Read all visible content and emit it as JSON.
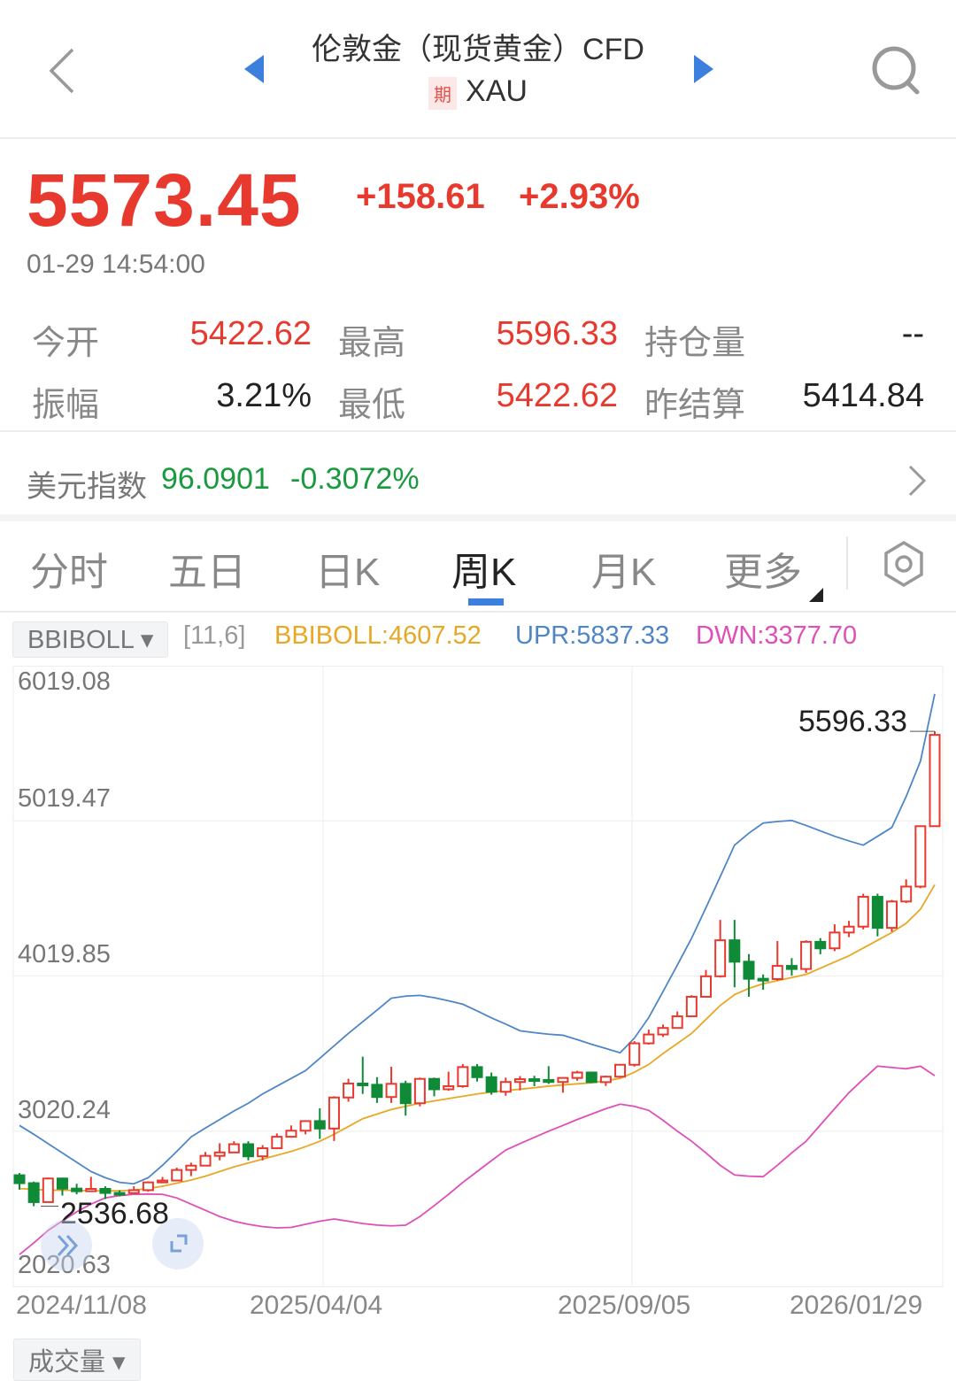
{
  "header": {
    "title": "伦敦金（现货黄金）CFD",
    "badge": "期",
    "symbol": "XAU",
    "icons": [
      "chevron-left-icon",
      "prev-arrow-icon",
      "next-arrow-icon",
      "search-icon"
    ]
  },
  "quote": {
    "price": "5573.45",
    "change": "+158.61",
    "change_pct": "+2.93%",
    "time": "01-29 14:54:00",
    "color_up": "#e8392e",
    "color_down": "#0f8a37"
  },
  "stats": [
    {
      "label": "今开",
      "value": "5422.62",
      "color": "red"
    },
    {
      "label": "最高",
      "value": "5596.33",
      "color": "red"
    },
    {
      "label": "持仓量",
      "value": "--",
      "color": "black"
    },
    {
      "label": "振幅",
      "value": "3.21%",
      "color": "black"
    },
    {
      "label": "最低",
      "value": "5422.62",
      "color": "red"
    },
    {
      "label": "昨结算",
      "value": "5414.84",
      "color": "black"
    }
  ],
  "dxy": {
    "label": "美元指数",
    "value": "96.0901",
    "change": "-0.3072%",
    "color": "#1a9a3e"
  },
  "tabs": [
    {
      "label": "分时"
    },
    {
      "label": "五日"
    },
    {
      "label": "日K"
    },
    {
      "label": "周K",
      "active": true
    },
    {
      "label": "月K"
    },
    {
      "label": "更多"
    }
  ],
  "indicator": {
    "name": "BBIBOLL ▾",
    "params": "[11,6]",
    "mid": "BBIBOLL:4607.52",
    "upr": "UPR:5837.33",
    "dwn": "DWN:3377.70",
    "colors": {
      "mid": "#e7a825",
      "upr": "#4f86c6",
      "dwn": "#e04fb8"
    }
  },
  "volume_selector": "成交量 ▾",
  "chart_data": {
    "type": "candlestick",
    "period": "weekly",
    "y_ticks": [
      "6019.08",
      "5019.47",
      "4019.85",
      "3020.24",
      "2020.63"
    ],
    "ylim": [
      2020.63,
      6019.08
    ],
    "x_ticks": [
      "2024/11/08",
      "2025/04/04",
      "2025/09/05",
      "2026/01/29"
    ],
    "max_label": "5596.33",
    "min_label": "2536.68",
    "ohlc": [
      [
        2736,
        2750,
        2643,
        2685
      ],
      [
        2685,
        2695,
        2536.68,
        2563
      ],
      [
        2563,
        2721,
        2560,
        2715
      ],
      [
        2715,
        2721,
        2605,
        2650
      ],
      [
        2650,
        2681,
        2613,
        2633
      ],
      [
        2633,
        2726,
        2630,
        2648
      ],
      [
        2648,
        2665,
        2583,
        2622
      ],
      [
        2622,
        2639,
        2600,
        2621
      ],
      [
        2621,
        2665,
        2615,
        2640
      ],
      [
        2640,
        2697,
        2630,
        2690
      ],
      [
        2690,
        2725,
        2690,
        2702
      ],
      [
        2702,
        2785,
        2700,
        2770
      ],
      [
        2770,
        2817,
        2730,
        2798
      ],
      [
        2798,
        2886,
        2795,
        2861
      ],
      [
        2861,
        2942,
        2832,
        2883
      ],
      [
        2883,
        2955,
        2880,
        2936
      ],
      [
        2936,
        2955,
        2832,
        2858
      ],
      [
        2858,
        2930,
        2832,
        2910
      ],
      [
        2910,
        3005,
        2905,
        2984
      ],
      [
        2984,
        3057,
        2982,
        3023
      ],
      [
        3023,
        3087,
        3000,
        3085
      ],
      [
        3085,
        3167,
        2970,
        3037
      ],
      [
        3037,
        3245,
        2957,
        3237
      ],
      [
        3237,
        3358,
        3210,
        3327
      ],
      [
        3327,
        3500,
        3260,
        3319
      ],
      [
        3319,
        3368,
        3202,
        3240
      ],
      [
        3240,
        3435,
        3202,
        3325
      ],
      [
        3325,
        3345,
        3120,
        3200
      ],
      [
        3200,
        3365,
        3180,
        3357
      ],
      [
        3357,
        3365,
        3245,
        3290
      ],
      [
        3290,
        3403,
        3280,
        3310
      ],
      [
        3310,
        3452,
        3300,
        3433
      ],
      [
        3433,
        3452,
        3340,
        3368
      ],
      [
        3368,
        3398,
        3255,
        3274
      ],
      [
        3274,
        3365,
        3248,
        3337
      ],
      [
        3337,
        3375,
        3283,
        3355
      ],
      [
        3355,
        3377,
        3310,
        3350
      ],
      [
        3350,
        3439,
        3324,
        3337
      ],
      [
        3337,
        3363,
        3268,
        3363
      ],
      [
        3363,
        3409,
        3345,
        3398
      ],
      [
        3398,
        3404,
        3330,
        3336
      ],
      [
        3336,
        3378,
        3311,
        3371
      ],
      [
        3371,
        3453,
        3365,
        3448
      ],
      [
        3448,
        3600,
        3436,
        3586
      ],
      [
        3586,
        3674,
        3578,
        3643
      ],
      [
        3643,
        3707,
        3627,
        3685
      ],
      [
        3685,
        3791,
        3684,
        3760
      ],
      [
        3760,
        3896,
        3757,
        3886
      ],
      [
        3886,
        4059,
        3885,
        4018
      ],
      [
        4018,
        4381,
        4010,
        4250
      ],
      [
        4250,
        4381,
        3947,
        4112
      ],
      [
        4112,
        4161,
        3886,
        4002
      ],
      [
        4002,
        4030,
        3931,
        4000
      ],
      [
        4000,
        4245,
        3990,
        4085
      ],
      [
        4085,
        4135,
        4022,
        4065
      ],
      [
        4065,
        4250,
        4040,
        4240
      ],
      [
        4240,
        4264,
        4160,
        4198
      ],
      [
        4198,
        4353,
        4180,
        4300
      ],
      [
        4300,
        4375,
        4270,
        4338
      ],
      [
        4338,
        4550,
        4320,
        4530
      ],
      [
        4530,
        4550,
        4275,
        4330
      ],
      [
        4330,
        4510,
        4305,
        4500
      ],
      [
        4500,
        4643,
        4490,
        4596
      ],
      [
        4596,
        4990,
        4585,
        4985
      ],
      [
        4985,
        5596.33,
        4985,
        5573.45
      ]
    ],
    "series": [
      {
        "name": "UPR",
        "values": [
          3057,
          3000,
          2940,
          2880,
          2820,
          2760,
          2720,
          2690,
          2681,
          2720,
          2800,
          2890,
          2983,
          3040,
          3095,
          3150,
          3200,
          3260,
          3310,
          3360,
          3410,
          3490,
          3570,
          3650,
          3725,
          3800,
          3877,
          3890,
          3895,
          3880,
          3860,
          3838,
          3795,
          3750,
          3710,
          3667,
          3655,
          3645,
          3638,
          3610,
          3580,
          3553,
          3525,
          3620,
          3752,
          3920,
          4090,
          4264,
          4460,
          4660,
          4863,
          4940,
          5005,
          5015,
          5022,
          4990,
          4955,
          4920,
          4890,
          4863,
          4920,
          4977,
          5176,
          5404,
          5837.33
        ]
      },
      {
        "name": "BBIBOLL",
        "values": [
          2650,
          2645,
          2640,
          2640,
          2638,
          2636,
          2635,
          2636,
          2640,
          2650,
          2665,
          2685,
          2705,
          2730,
          2760,
          2790,
          2815,
          2840,
          2865,
          2890,
          2920,
          2955,
          3000,
          3050,
          3100,
          3130,
          3160,
          3180,
          3200,
          3215,
          3230,
          3245,
          3260,
          3272,
          3282,
          3290,
          3300,
          3310,
          3318,
          3325,
          3332,
          3345,
          3360,
          3400,
          3450,
          3520,
          3585,
          3650,
          3740,
          3830,
          3900,
          3940,
          3970,
          3990,
          4010,
          4030,
          4070,
          4110,
          4150,
          4200,
          4250,
          4300,
          4360,
          4450,
          4607.52
        ]
      },
      {
        "name": "DWN",
        "values": [
          2225,
          2300,
          2380,
          2442,
          2500,
          2550,
          2590,
          2605,
          2613,
          2615,
          2613,
          2590,
          2550,
          2510,
          2470,
          2440,
          2420,
          2405,
          2397,
          2400,
          2420,
          2440,
          2454,
          2440,
          2425,
          2415,
          2410,
          2414,
          2470,
          2540,
          2613,
          2690,
          2760,
          2830,
          2898,
          2940,
          2980,
          3020,
          3057,
          3095,
          3130,
          3165,
          3194,
          3180,
          3154,
          3090,
          3020,
          2955,
          2880,
          2800,
          2738,
          2730,
          2727,
          2800,
          2880,
          2955,
          3060,
          3165,
          3268,
          3355,
          3439,
          3430,
          3422,
          3439,
          3377.7
        ]
      }
    ]
  }
}
